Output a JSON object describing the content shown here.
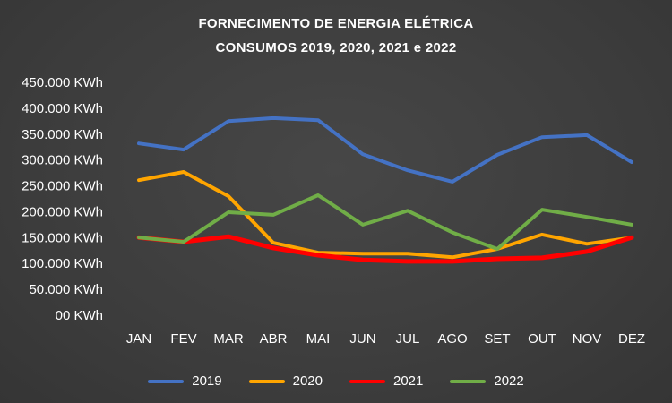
{
  "chart_data": {
    "type": "line",
    "title": "FORNECIMENTO DE ENERGIA ELÉTRICA",
    "subtitle": "CONSUMOS 2019, 2020, 2021 e 2022",
    "categories": [
      "JAN",
      "FEV",
      "MAR",
      "ABR",
      "MAI",
      "JUN",
      "JUL",
      "AGO",
      "SET",
      "OUT",
      "NOV",
      "DEZ"
    ],
    "series": [
      {
        "name": "2019",
        "color": "#4472C4",
        "width": 4,
        "values": [
          332000,
          320000,
          375000,
          381000,
          377000,
          311000,
          280000,
          258000,
          310000,
          344000,
          348000,
          296000
        ]
      },
      {
        "name": "2020",
        "color": "#FFA500",
        "width": 4,
        "values": [
          261000,
          277000,
          230000,
          140000,
          121000,
          119000,
          119000,
          112000,
          128000,
          156000,
          138000,
          150000
        ]
      },
      {
        "name": "2021",
        "color": "#FF0000",
        "width": 5,
        "values": [
          150000,
          142000,
          152000,
          130000,
          116000,
          107000,
          104000,
          104000,
          109000,
          111000,
          123000,
          150000
        ]
      },
      {
        "name": "2022",
        "color": "#70AD47",
        "width": 4,
        "values": [
          150000,
          142000,
          199000,
          194000,
          232000,
          175000,
          202000,
          160000,
          128000,
          204000,
          190000,
          175000
        ]
      }
    ],
    "xlabel": "",
    "ylabel": "",
    "ylim": [
      0,
      450000
    ],
    "ytick_step": 50000,
    "ytick_labels": [
      "00 KWh",
      "50.000 KWh",
      "100.000 KWh",
      "150.000 KWh",
      "200.000 KWh",
      "250.000 KWh",
      "300.000 KWh",
      "350.000 KWh",
      "400.000 KWh",
      "450.000 KWh"
    ],
    "grid": false,
    "legend_position": "bottom",
    "text_color": "#ffffff",
    "background_color": "#3c3c3c"
  }
}
